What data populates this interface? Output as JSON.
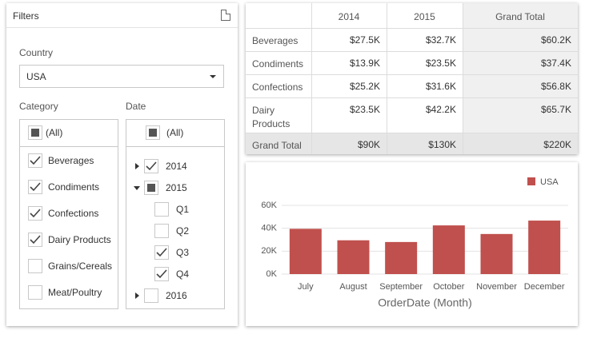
{
  "filters": {
    "title": "Filters",
    "country_label": "Country",
    "country_value": "USA",
    "category_label": "Category",
    "categories": [
      {
        "label": "(All)",
        "state": "partial"
      },
      {
        "label": "Beverages",
        "state": "checked"
      },
      {
        "label": "Condiments",
        "state": "checked"
      },
      {
        "label": "Confections",
        "state": "checked"
      },
      {
        "label": "Dairy Products",
        "state": "checked"
      },
      {
        "label": "Grains/Cereals",
        "state": "unchecked"
      },
      {
        "label": "Meat/Poultry",
        "state": "unchecked"
      }
    ],
    "date_label": "Date",
    "dates": [
      {
        "label": "(All)",
        "state": "partial",
        "level": 0
      },
      {
        "label": "2014",
        "state": "checked",
        "level": 0,
        "expanded": false
      },
      {
        "label": "2015",
        "state": "partial",
        "level": 0,
        "expanded": true
      },
      {
        "label": "Q1",
        "state": "unchecked",
        "level": 1
      },
      {
        "label": "Q2",
        "state": "unchecked",
        "level": 1
      },
      {
        "label": "Q3",
        "state": "checked",
        "level": 1
      },
      {
        "label": "Q4",
        "state": "checked",
        "level": 1
      },
      {
        "label": "2016",
        "state": "unchecked",
        "level": 0,
        "expanded": false
      }
    ]
  },
  "pivot": {
    "columns": [
      "2014",
      "2015",
      "Grand Total"
    ],
    "rows": [
      [
        "Beverages",
        "$27.5K",
        "$32.7K",
        "$60.2K"
      ],
      [
        "Condiments",
        "$13.9K",
        "$23.5K",
        "$37.4K"
      ],
      [
        "Confections",
        "$25.2K",
        "$31.6K",
        "$56.8K"
      ],
      [
        "Dairy Products",
        "$23.5K",
        "$42.2K",
        "$65.7K"
      ],
      [
        "Grand Total",
        "$90K",
        "$130K",
        "$220K"
      ]
    ]
  },
  "chart_data": {
    "type": "bar",
    "categories": [
      "July",
      "August",
      "September",
      "October",
      "November",
      "December"
    ],
    "series": [
      {
        "name": "USA",
        "color": "#c0504d",
        "values": [
          39500,
          29500,
          28000,
          42500,
          35000,
          46700
        ]
      }
    ],
    "x_label": "OrderDate (Month)",
    "ylim": [
      0,
      60000
    ],
    "yticks": [
      {
        "value": 0,
        "label": "0K"
      },
      {
        "value": 20000,
        "label": "20K"
      },
      {
        "value": 40000,
        "label": "40K"
      },
      {
        "value": 60000,
        "label": "60K"
      }
    ],
    "grid": true,
    "legend": "top-right"
  }
}
